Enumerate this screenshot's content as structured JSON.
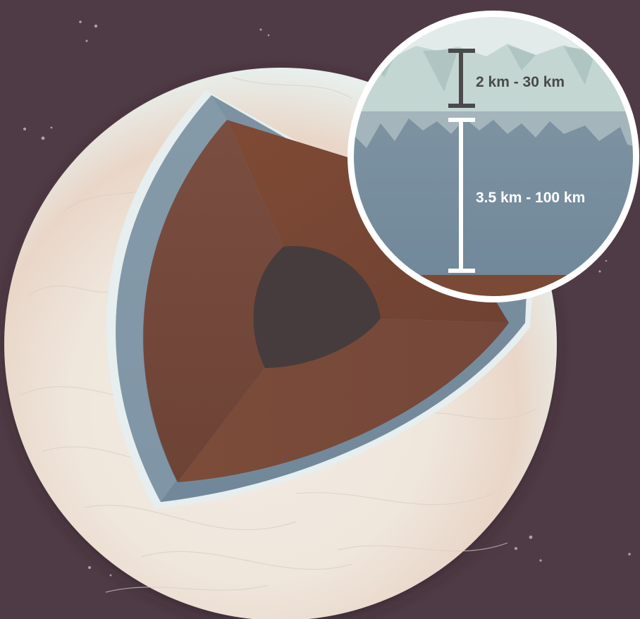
{
  "diagram": {
    "layers": [
      {
        "id": "ice-shell",
        "thickness_label": "2 km - 30 km"
      },
      {
        "id": "ocean",
        "thickness_label": "3.5 km - 100 km"
      },
      {
        "id": "rocky-mantle"
      },
      {
        "id": "metallic-core"
      }
    ]
  },
  "colors": {
    "background": "#4f3b45",
    "ice_surface": "#e8efec",
    "ice_shell": "#dde6e6",
    "ocean": "#7a909e",
    "mantle": "#7a4a36",
    "core": "#453b3c",
    "label_dark": "#4a4a4a",
    "label_light": "#ffffff"
  }
}
